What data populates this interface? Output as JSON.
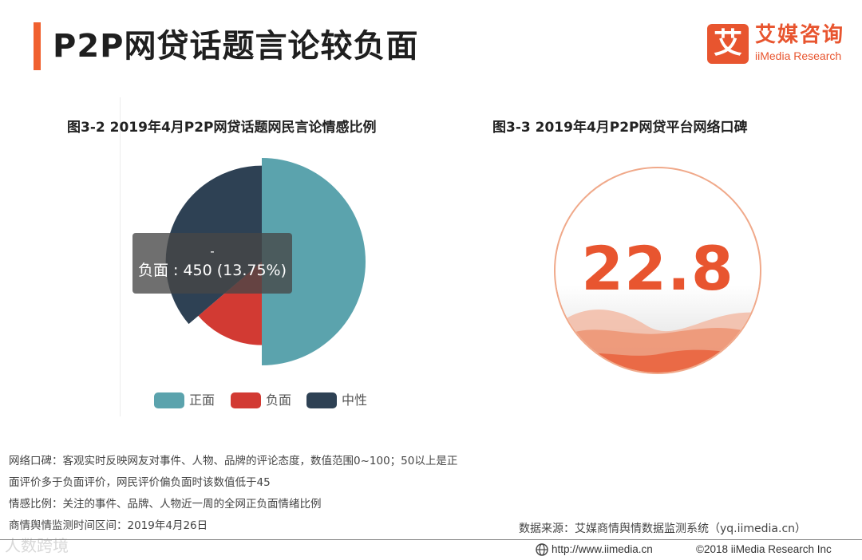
{
  "header": {
    "title": "P2P网贷话题言论较负面",
    "accent_color": "#f0602f"
  },
  "logo": {
    "mark": "艾",
    "name_cn": "艾媒咨询",
    "name_en": "iiMedia Research",
    "color": "#e8552f"
  },
  "chart_data": [
    {
      "type": "pie",
      "title": "图3-2  2019年4月P2P网贷话题网民言论情感比例",
      "categories": [
        "正面",
        "负面",
        "中性"
      ],
      "values": [
        1636,
        450,
        1186
      ],
      "colors": [
        "#5ba3ad",
        "#d23a33",
        "#2e4154"
      ],
      "legend_position": "bottom",
      "tooltip": {
        "series": "-",
        "text": "负面 : 450 (13.75%)"
      }
    },
    {
      "type": "gauge",
      "title": "图3-3 2019年4月P2P网贷平台网络口碑",
      "value": "22.8",
      "range": [
        0,
        100
      ],
      "color": "#e8552f"
    }
  ],
  "notes": [
    "网络口碑：客观实时反映网友对事件、人物、品牌的评论态度，数值范围0~100；50以上是正",
    "面评价多于负面评价，网民评价偏负面时该数值低于45",
    "情感比例：关注的事件、品牌、人物近一周的全网正负面情绪比例",
    "商情舆情监测时间区间：2019年4月26日"
  ],
  "source": "数据来源：艾媒商情舆情数据监测系统（yq.iimedia.cn）",
  "footer": {
    "url": "http://www.iimedia.cn",
    "copyright": "©2018  iiMedia Research  Inc"
  },
  "watermark": "人数跨境"
}
